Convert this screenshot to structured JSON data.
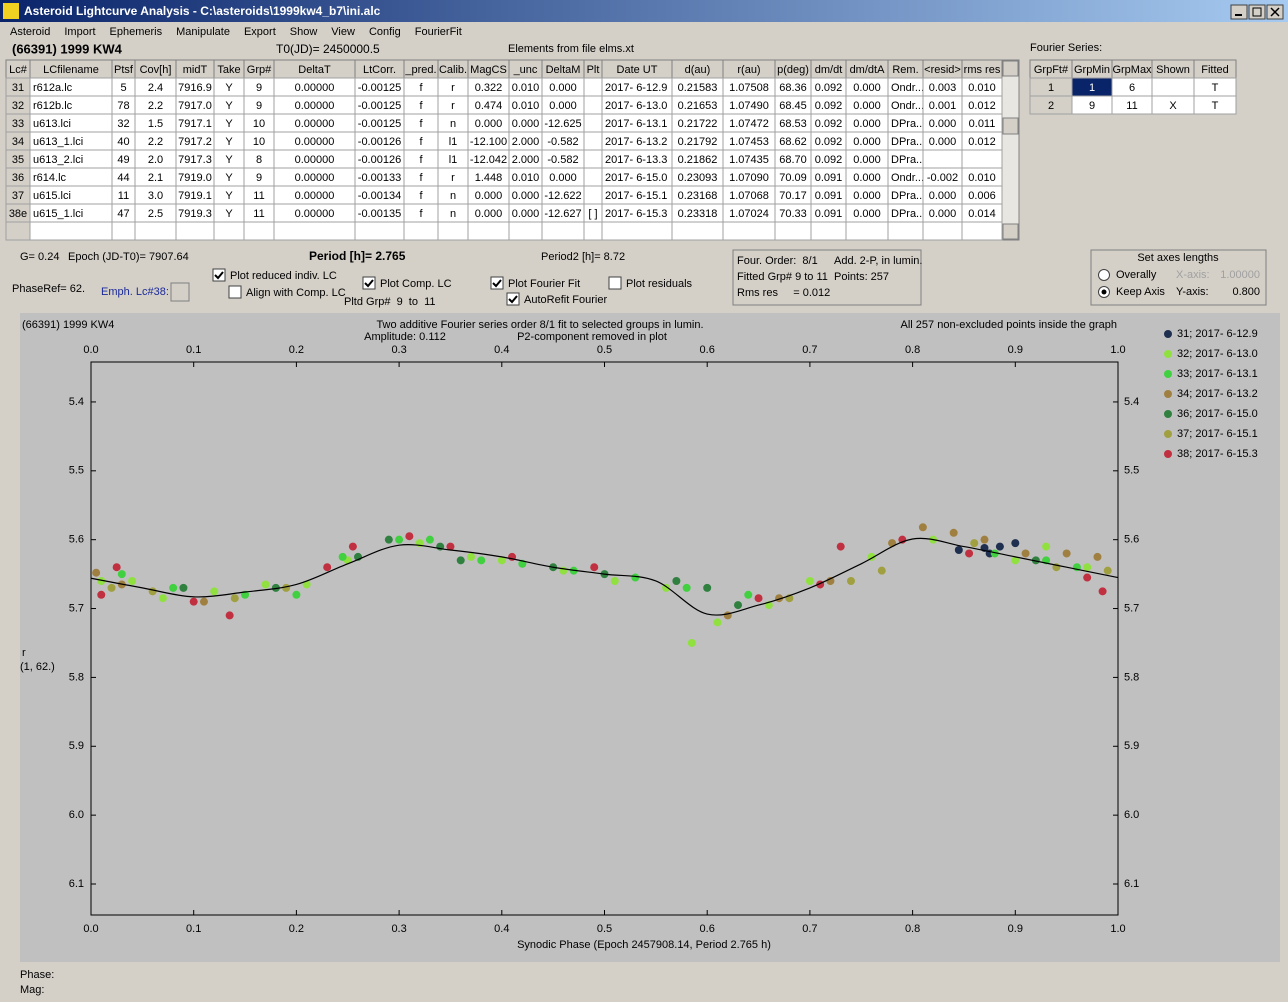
{
  "window": {
    "title": "Asteroid Lightcurve Analysis - C:\\asteroids\\1999kw4_b7\\ini.alc",
    "menu": [
      "Asteroid",
      "Import",
      "Ephemeris",
      "Manipulate",
      "Export",
      "Show",
      "View",
      "Config",
      "FourierFit"
    ]
  },
  "header": {
    "object": "(66391) 1999 KW4",
    "t0": "T0(JD)= 2450000.5",
    "elements": "Elements from file elms.xt",
    "fourier_label": "Fourier Series:"
  },
  "table": {
    "headers": [
      "Lc#",
      "LCfilename",
      "Ptsf",
      "Cov[h]",
      "midT",
      "Take",
      "Grp#",
      "DeltaT",
      "LtCorr.",
      "_pred.",
      "Calib.",
      "MagCS",
      "_unc",
      "DeltaM",
      "Plt",
      "Date UT",
      "d(au)",
      "r(au)",
      "p(deg)",
      "dm/dt",
      "dm/dtA",
      "Rem.",
      "<resid>",
      "rms res"
    ],
    "rows": [
      [
        "31",
        "r612a.lc",
        "5",
        "2.4",
        "7916.9",
        "Y",
        "9",
        "0.00000",
        "-0.00125",
        "f",
        "r",
        "0.322",
        "0.010",
        "0.000",
        null,
        "2017- 6-12.9",
        "0.21583",
        "1.07508",
        "68.36",
        "0.092",
        "0.000",
        "Ondr...",
        "0.003",
        "0.010"
      ],
      [
        "32",
        "r612b.lc",
        "78",
        "2.2",
        "7917.0",
        "Y",
        "9",
        "0.00000",
        "-0.00125",
        "f",
        "r",
        "0.474",
        "0.010",
        "0.000",
        null,
        "2017- 6-13.0",
        "0.21653",
        "1.07490",
        "68.45",
        "0.092",
        "0.000",
        "Ondr...",
        "0.001",
        "0.012"
      ],
      [
        "33",
        "u613.lci",
        "32",
        "1.5",
        "7917.1",
        "Y",
        "10",
        "0.00000",
        "-0.00125",
        "f",
        "n",
        "0.000",
        "0.000",
        "-12.625",
        null,
        "2017- 6-13.1",
        "0.21722",
        "1.07472",
        "68.53",
        "0.092",
        "0.000",
        "DPra...",
        "0.000",
        "0.011"
      ],
      [
        "34",
        "u613_1.lci",
        "40",
        "2.2",
        "7917.2",
        "Y",
        "10",
        "0.00000",
        "-0.00126",
        "f",
        "l1",
        "-12.100",
        "2.000",
        "-0.582",
        null,
        "2017- 6-13.2",
        "0.21792",
        "1.07453",
        "68.62",
        "0.092",
        "0.000",
        "DPra...",
        "0.000",
        "0.012"
      ],
      [
        "35",
        "u613_2.lci",
        "49",
        "2.0",
        "7917.3",
        "Y",
        "8",
        "0.00000",
        "-0.00126",
        "f",
        "l1",
        "-12.042",
        "2.000",
        "-0.582",
        null,
        "2017- 6-13.3",
        "0.21862",
        "1.07435",
        "68.70",
        "0.092",
        "0.000",
        "DPra...",
        null,
        null
      ],
      [
        "36",
        "r614.lc",
        "44",
        "2.1",
        "7919.0",
        "Y",
        "9",
        "0.00000",
        "-0.00133",
        "f",
        "r",
        "1.448",
        "0.010",
        "0.000",
        null,
        "2017- 6-15.0",
        "0.23093",
        "1.07090",
        "70.09",
        "0.091",
        "0.000",
        "Ondr...",
        "-0.002",
        "0.010"
      ],
      [
        "37",
        "u615.lci",
        "11",
        "3.0",
        "7919.1",
        "Y",
        "11",
        "0.00000",
        "-0.00134",
        "f",
        "n",
        "0.000",
        "0.000",
        "-12.622",
        null,
        "2017- 6-15.1",
        "0.23168",
        "1.07068",
        "70.17",
        "0.091",
        "0.000",
        "DPra...",
        "0.000",
        "0.006"
      ],
      [
        "38e",
        "u615_1.lci",
        "47",
        "2.5",
        "7919.3",
        "Y",
        "11",
        "0.00000",
        "-0.00135",
        "f",
        "n",
        "0.000",
        "0.000",
        "-12.627",
        "[ ]",
        "2017- 6-15.3",
        "0.23318",
        "1.07024",
        "70.33",
        "0.091",
        "0.000",
        "DPra...",
        "0.000",
        "0.014"
      ]
    ]
  },
  "fourier_table": {
    "headers": [
      "GrpFt#",
      "GrpMin",
      "GrpMax",
      "Shown",
      "Fitted"
    ],
    "rows": [
      [
        "1",
        "1",
        "6",
        null,
        "T"
      ],
      [
        "2",
        "9",
        "11",
        "X",
        "T"
      ]
    ]
  },
  "params": {
    "g": "G= 0.24",
    "epoch": "Epoch (JD-T0)= 7907.64",
    "period": "Period [h]= 2.765",
    "period2": "Period2 [h]= 8.72",
    "phase_ref": "PhaseRef= 62.",
    "emph": "Emph. Lc#38:",
    "pltd_grp": "Pltd Grp#  9  to  11"
  },
  "checkboxes": [
    {
      "label": "Plot reduced indiv. LC",
      "checked": true
    },
    {
      "label": "Align with Comp. LC",
      "checked": false
    },
    {
      "label": "Plot Comp. LC",
      "checked": true
    },
    {
      "label": "Plot Fourier Fit",
      "checked": true
    },
    {
      "label": "AutoRefit Fourier",
      "checked": true
    },
    {
      "label": "Plot residuals",
      "checked": false
    }
  ],
  "fit_box": [
    "Four. Order:  8/1",
    "Add. 2-P, in lumin.",
    "Fitted Grp# 9 to 11",
    "Points: 257",
    "Rms res     = 0.012"
  ],
  "axes_group": {
    "title": "Set axes lengths",
    "options": [
      {
        "label": "Overally",
        "selected": false,
        "axis": "X-axis:",
        "value": "1.00000"
      },
      {
        "label": "Keep Axis",
        "selected": true,
        "axis": "Y-axis:",
        "value": "0.800"
      }
    ]
  },
  "status": [
    "Phase:",
    "Mag:"
  ],
  "chart_data": {
    "type": "scatter",
    "title": "(66391) 1999 KW4",
    "annotations": [
      "Two additive Fourier series order 8/1 fit to selected groups in lumin.",
      "Amplitude: 0.112",
      "P2-component removed in plot",
      "All 257 non-excluded points inside the graph"
    ],
    "xlabel": "Synodic Phase (Epoch 2457908.14, Period 2.765 h)",
    "ylabel": "r",
    "ylabel2": "(1, 62.)",
    "xlim": [
      0,
      1
    ],
    "ylim": [
      5.342,
      6.145
    ],
    "y_inverted": true,
    "xticks": [
      {
        "value": 0,
        "label": "0.0"
      },
      0.1,
      0.2,
      0.3,
      0.4,
      0.5,
      0.6,
      0.7,
      0.8,
      0.9,
      {
        "value": 1,
        "label": "1.0"
      }
    ],
    "yticks": [
      5.4,
      5.5,
      5.6,
      5.7,
      5.8,
      5.9,
      {
        "value": 6,
        "label": "6.0"
      },
      6.1
    ],
    "series": [
      {
        "name": "31; 2017- 6-12.9",
        "color": "#1f2f4f",
        "x": [
          0.845,
          0.87,
          0.875,
          0.885,
          0.9
        ],
        "values": [
          5.615,
          5.612,
          5.62,
          5.61,
          5.605
        ]
      },
      {
        "name": "32; 2017- 6-13.0",
        "color": "#90e040",
        "x": [
          0.01,
          0.04,
          0.07,
          0.12,
          0.17,
          0.21,
          0.25,
          0.32,
          0.37,
          0.4,
          0.46,
          0.51,
          0.56,
          0.585,
          0.61,
          0.66,
          0.7,
          0.76,
          0.82,
          0.9,
          0.93,
          0.97
        ],
        "values": [
          5.66,
          5.66,
          5.685,
          5.675,
          5.665,
          5.665,
          5.63,
          5.605,
          5.625,
          5.63,
          5.645,
          5.66,
          5.67,
          5.75,
          5.72,
          5.695,
          5.66,
          5.625,
          5.6,
          5.63,
          5.61,
          5.64
        ]
      },
      {
        "name": "33; 2017- 6-13.1",
        "color": "#40d040",
        "x": [
          0.03,
          0.08,
          0.15,
          0.2,
          0.245,
          0.3,
          0.33,
          0.38,
          0.42,
          0.47,
          0.53,
          0.58,
          0.64,
          0.88,
          0.93,
          0.96
        ],
        "values": [
          5.65,
          5.67,
          5.68,
          5.68,
          5.625,
          5.6,
          5.6,
          5.63,
          5.635,
          5.645,
          5.655,
          5.67,
          5.68,
          5.62,
          5.63,
          5.64
        ]
      },
      {
        "name": "34; 2017- 6-13.2",
        "color": "#a08040",
        "x": [
          0.005,
          0.03,
          0.11,
          0.62,
          0.67,
          0.72,
          0.78,
          0.81,
          0.84,
          0.87,
          0.91,
          0.95,
          0.98
        ],
        "values": [
          5.648,
          5.665,
          5.69,
          5.71,
          5.685,
          5.66,
          5.605,
          5.582,
          5.59,
          5.6,
          5.62,
          5.62,
          5.625
        ]
      },
      {
        "name": "36; 2017- 6-15.0",
        "color": "#308040",
        "x": [
          0.09,
          0.18,
          0.26,
          0.29,
          0.34,
          0.36,
          0.45,
          0.5,
          0.57,
          0.6,
          0.63,
          0.92
        ],
        "values": [
          5.67,
          5.67,
          5.625,
          5.6,
          5.61,
          5.63,
          5.64,
          5.65,
          5.66,
          5.67,
          5.695,
          5.63
        ]
      },
      {
        "name": "37; 2017- 6-15.1",
        "color": "#a0a040",
        "x": [
          0.02,
          0.06,
          0.14,
          0.19,
          0.68,
          0.74,
          0.77,
          0.86,
          0.94,
          0.99
        ],
        "values": [
          5.67,
          5.675,
          5.685,
          5.67,
          5.685,
          5.66,
          5.645,
          5.605,
          5.64,
          5.645
        ]
      },
      {
        "name": "38; 2017- 6-15.3",
        "color": "#c03040",
        "x": [
          0.01,
          0.025,
          0.1,
          0.135,
          0.23,
          0.255,
          0.31,
          0.35,
          0.41,
          0.49,
          0.65,
          0.71,
          0.73,
          0.79,
          0.855,
          0.97,
          0.985
        ],
        "values": [
          5.68,
          5.64,
          5.69,
          5.71,
          5.64,
          5.61,
          5.595,
          5.61,
          5.625,
          5.64,
          5.685,
          5.665,
          5.61,
          5.6,
          5.62,
          5.655,
          5.675
        ]
      }
    ],
    "fit": {
      "color": "#000000",
      "x": [
        0,
        0.05,
        0.1,
        0.15,
        0.2,
        0.25,
        0.3,
        0.35,
        0.4,
        0.45,
        0.5,
        0.55,
        0.6,
        0.65,
        0.7,
        0.75,
        0.8,
        0.85,
        0.9,
        0.95,
        1
      ],
      "values": [
        5.656,
        5.67,
        5.683,
        5.676,
        5.665,
        5.635,
        5.608,
        5.615,
        5.625,
        5.64,
        5.65,
        5.66,
        5.708,
        5.695,
        5.67,
        5.635,
        5.599,
        5.61,
        5.625,
        5.64,
        5.655
      ]
    }
  }
}
